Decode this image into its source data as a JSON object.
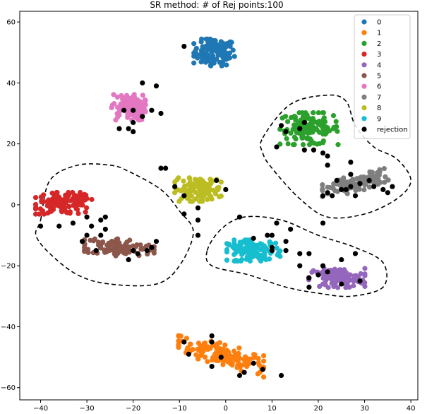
{
  "chart_data": {
    "type": "scatter",
    "title": "SR method: # of Rej points:100",
    "xlabel": "",
    "ylabel": "",
    "xlim": [
      -44.5,
      41.5
    ],
    "ylim": [
      -64,
      63.5
    ],
    "xticks": [
      -40,
      -30,
      -20,
      -10,
      0,
      10,
      20,
      30,
      40
    ],
    "yticks": [
      -60,
      -40,
      -20,
      0,
      20,
      40,
      60
    ],
    "grid": false,
    "legend_position": "top-right",
    "series": [
      {
        "name": "0",
        "color": "#1f77b4",
        "center": [
          -2.5,
          50
        ],
        "spread": [
          4.2,
          4.2
        ],
        "count": 110
      },
      {
        "name": "1",
        "color": "#ff7f0e",
        "center": [
          -1,
          -49
        ],
        "spread": [
          8.8,
          3.5
        ],
        "slope": -0.42,
        "count": 150
      },
      {
        "name": "2",
        "color": "#2ca02c",
        "center": [
          18,
          25
        ],
        "spread": [
          6.0,
          5.0
        ],
        "count": 130
      },
      {
        "name": "3",
        "color": "#d62728",
        "center": [
          -35,
          0.5
        ],
        "spread": [
          5.8,
          3.4
        ],
        "count": 120
      },
      {
        "name": "4",
        "color": "#9467bd",
        "center": [
          24,
          -24
        ],
        "spread": [
          5.8,
          3.0
        ],
        "count": 110
      },
      {
        "name": "5",
        "color": "#8c564b",
        "center": [
          -23,
          -14
        ],
        "spread": [
          7.2,
          2.7
        ],
        "slope": -0.12,
        "count": 100
      },
      {
        "name": "6",
        "color": "#e377c2",
        "center": [
          -21,
          32
        ],
        "spread": [
          3.5,
          4.0
        ],
        "count": 100
      },
      {
        "name": "7",
        "color": "#7f7f7f",
        "center": [
          28,
          7
        ],
        "spread": [
          6.8,
          2.6
        ],
        "slope": 0.35,
        "count": 110
      },
      {
        "name": "8",
        "color": "#bcbd22",
        "center": [
          -6,
          5
        ],
        "spread": [
          4.8,
          3.7
        ],
        "count": 120
      },
      {
        "name": "9",
        "color": "#17becf",
        "center": [
          6,
          -15
        ],
        "spread": [
          5.5,
          3.3
        ],
        "count": 110
      },
      {
        "name": "rejection",
        "color": "#000000",
        "count": 100,
        "points": [
          [
            -9,
            52
          ],
          [
            -18,
            40
          ],
          [
            -15,
            39
          ],
          [
            -22,
            31
          ],
          [
            -20,
            31
          ],
          [
            -18,
            29
          ],
          [
            -16,
            31
          ],
          [
            -14,
            30
          ],
          [
            -20,
            27
          ],
          [
            -21,
            25
          ],
          [
            -20,
            24
          ],
          [
            -23,
            25
          ],
          [
            -33,
            -6
          ],
          [
            -40,
            -7
          ],
          [
            -36,
            -7
          ],
          [
            -30,
            -4
          ],
          [
            -29,
            -7
          ],
          [
            -30,
            -10
          ],
          [
            -27,
            -5
          ],
          [
            -26,
            -4
          ],
          [
            -26,
            -8
          ],
          [
            -27,
            -10
          ],
          [
            -31,
            -12
          ],
          [
            -28,
            -15
          ],
          [
            -21,
            -18
          ],
          [
            -17,
            -15
          ],
          [
            -16,
            -14
          ],
          [
            -15,
            -12
          ],
          [
            -11,
            6
          ],
          [
            -9,
            3
          ],
          [
            -9,
            -3
          ],
          [
            -6,
            -1
          ],
          [
            -6,
            -5
          ],
          [
            -6,
            -10
          ],
          [
            -2,
            8
          ],
          [
            0,
            5
          ],
          [
            3,
            -4
          ],
          [
            6,
            -11
          ],
          [
            9,
            -10
          ],
          [
            10,
            -15
          ],
          [
            13,
            -15
          ],
          [
            13,
            -12
          ],
          [
            16,
            -16
          ],
          [
            18,
            -16
          ],
          [
            16,
            -20
          ],
          [
            18,
            -24
          ],
          [
            20,
            -23
          ],
          [
            18,
            -27
          ],
          [
            22,
            -22
          ],
          [
            21,
            -20
          ],
          [
            25,
            -26
          ],
          [
            10,
            -10
          ],
          [
            14,
            -8
          ],
          [
            17,
            27
          ],
          [
            16,
            25
          ],
          [
            13,
            24
          ],
          [
            17,
            18
          ],
          [
            11,
            19
          ],
          [
            12,
            26
          ],
          [
            19,
            18
          ],
          [
            21,
            17
          ],
          [
            22,
            16
          ],
          [
            22,
            13
          ],
          [
            24,
            8
          ],
          [
            27,
            10
          ],
          [
            27,
            6
          ],
          [
            28,
            3
          ],
          [
            29,
            7
          ],
          [
            32,
            6
          ],
          [
            34,
            5
          ],
          [
            35,
            4
          ],
          [
            36,
            6
          ],
          [
            31,
            8
          ],
          [
            26,
            5
          ],
          [
            25,
            5
          ],
          [
            23,
            3
          ],
          [
            27,
            14
          ],
          [
            21,
            3
          ],
          [
            22,
            4
          ],
          [
            -9,
            -45
          ],
          [
            -3,
            -45
          ],
          [
            -3,
            -43
          ],
          [
            3,
            -56
          ],
          [
            12,
            -56
          ],
          [
            8,
            -54
          ],
          [
            -1,
            -50
          ],
          [
            4,
            -55
          ],
          [
            6,
            -52
          ],
          [
            -3,
            -53
          ],
          [
            -8,
            -49
          ],
          [
            11,
            -6
          ],
          [
            21,
            -6
          ],
          [
            28,
            -16
          ],
          [
            25,
            -18
          ],
          [
            10,
            -14
          ],
          [
            29,
            -25
          ],
          [
            -20,
            -15
          ],
          [
            -19,
            -16
          ],
          [
            -14,
            12
          ],
          [
            -13,
            12
          ]
        ]
      }
    ],
    "regions": [
      {
        "shape": "dashed-outline",
        "points": [
          [
            -40,
            -5
          ],
          [
            -38,
            8
          ],
          [
            -32,
            13
          ],
          [
            -25,
            13
          ],
          [
            -21,
            11
          ],
          [
            -14,
            5
          ],
          [
            -10,
            -2
          ],
          [
            -7,
            -9
          ],
          [
            -10,
            -20
          ],
          [
            -15,
            -26
          ],
          [
            -25,
            -26
          ],
          [
            -32,
            -23
          ],
          [
            -38,
            -16
          ],
          [
            -41,
            -10
          ]
        ]
      },
      {
        "shape": "dashed-outline",
        "points": [
          [
            8,
            22
          ],
          [
            14,
            33
          ],
          [
            22,
            36
          ],
          [
            26,
            34
          ],
          [
            28,
            26
          ],
          [
            32,
            19
          ],
          [
            37,
            15
          ],
          [
            40,
            8
          ],
          [
            37,
            2
          ],
          [
            30,
            -3
          ],
          [
            22,
            -4
          ],
          [
            16,
            2
          ],
          [
            10,
            12
          ],
          [
            8,
            17
          ]
        ]
      },
      {
        "shape": "dashed-outline",
        "points": [
          [
            -4,
            -15
          ],
          [
            -1,
            -8
          ],
          [
            4,
            -4
          ],
          [
            12,
            -5
          ],
          [
            20,
            -10
          ],
          [
            28,
            -14
          ],
          [
            34,
            -19
          ],
          [
            34,
            -27
          ],
          [
            27,
            -30
          ],
          [
            20,
            -29
          ],
          [
            13,
            -27
          ],
          [
            5,
            -23
          ],
          [
            -3,
            -20
          ]
        ]
      }
    ]
  }
}
